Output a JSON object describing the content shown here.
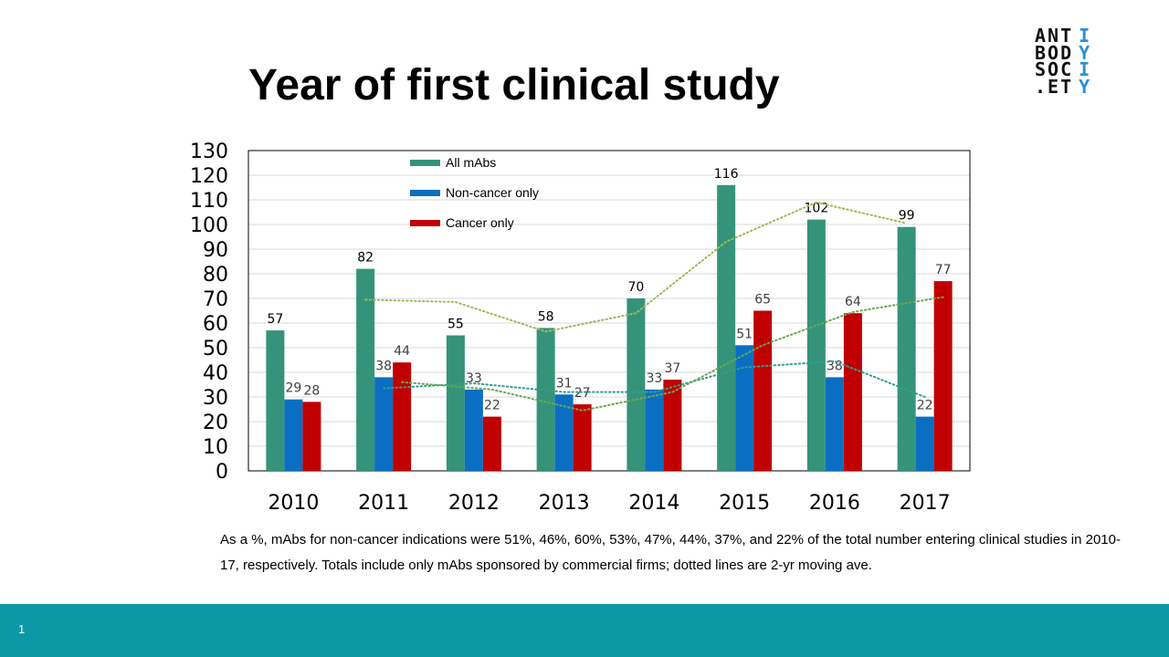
{
  "slide": {
    "title": "Year of first clinical study",
    "caption": "As a %, mAbs for non-cancer indications were 51%, 46%, 60%, 53%, 47%, 44%, 37%, and 22% of the total number entering clinical studies in 2010-17, respectively. Totals include only mAbs sponsored by commercial firms; dotted lines are 2-yr moving ave.",
    "page_number": "1"
  },
  "logo": {
    "rows": [
      {
        "black": "ANT",
        "blue": "I"
      },
      {
        "black": "BOD",
        "blue": "Y"
      },
      {
        "black": "SOC",
        "blue": "I"
      },
      {
        "black": ".ET",
        "blue": "Y"
      }
    ],
    "colors": {
      "black": "#111111",
      "blue": "#2a8fd6"
    }
  },
  "chart_data": {
    "type": "bar",
    "categories": [
      "2010",
      "2011",
      "2012",
      "2013",
      "2014",
      "2015",
      "2016",
      "2017"
    ],
    "series": [
      {
        "name": "All mAbs",
        "color": "#35937a",
        "values": [
          57,
          82,
          55,
          58,
          70,
          116,
          102,
          99
        ]
      },
      {
        "name": "Non-cancer only",
        "color": "#0a6fc2",
        "values": [
          29,
          38,
          33,
          31,
          33,
          51,
          38,
          22
        ]
      },
      {
        "name": "Cancer only",
        "color": "#c00000",
        "values": [
          28,
          44,
          22,
          27,
          37,
          65,
          64,
          77
        ]
      }
    ],
    "y_ticks": [
      0,
      10,
      20,
      30,
      40,
      50,
      60,
      70,
      80,
      90,
      100,
      110,
      120,
      130
    ],
    "ylim": [
      0,
      130
    ],
    "legend_position": "top-inside",
    "trendlines": "2-period moving average, dotted"
  }
}
